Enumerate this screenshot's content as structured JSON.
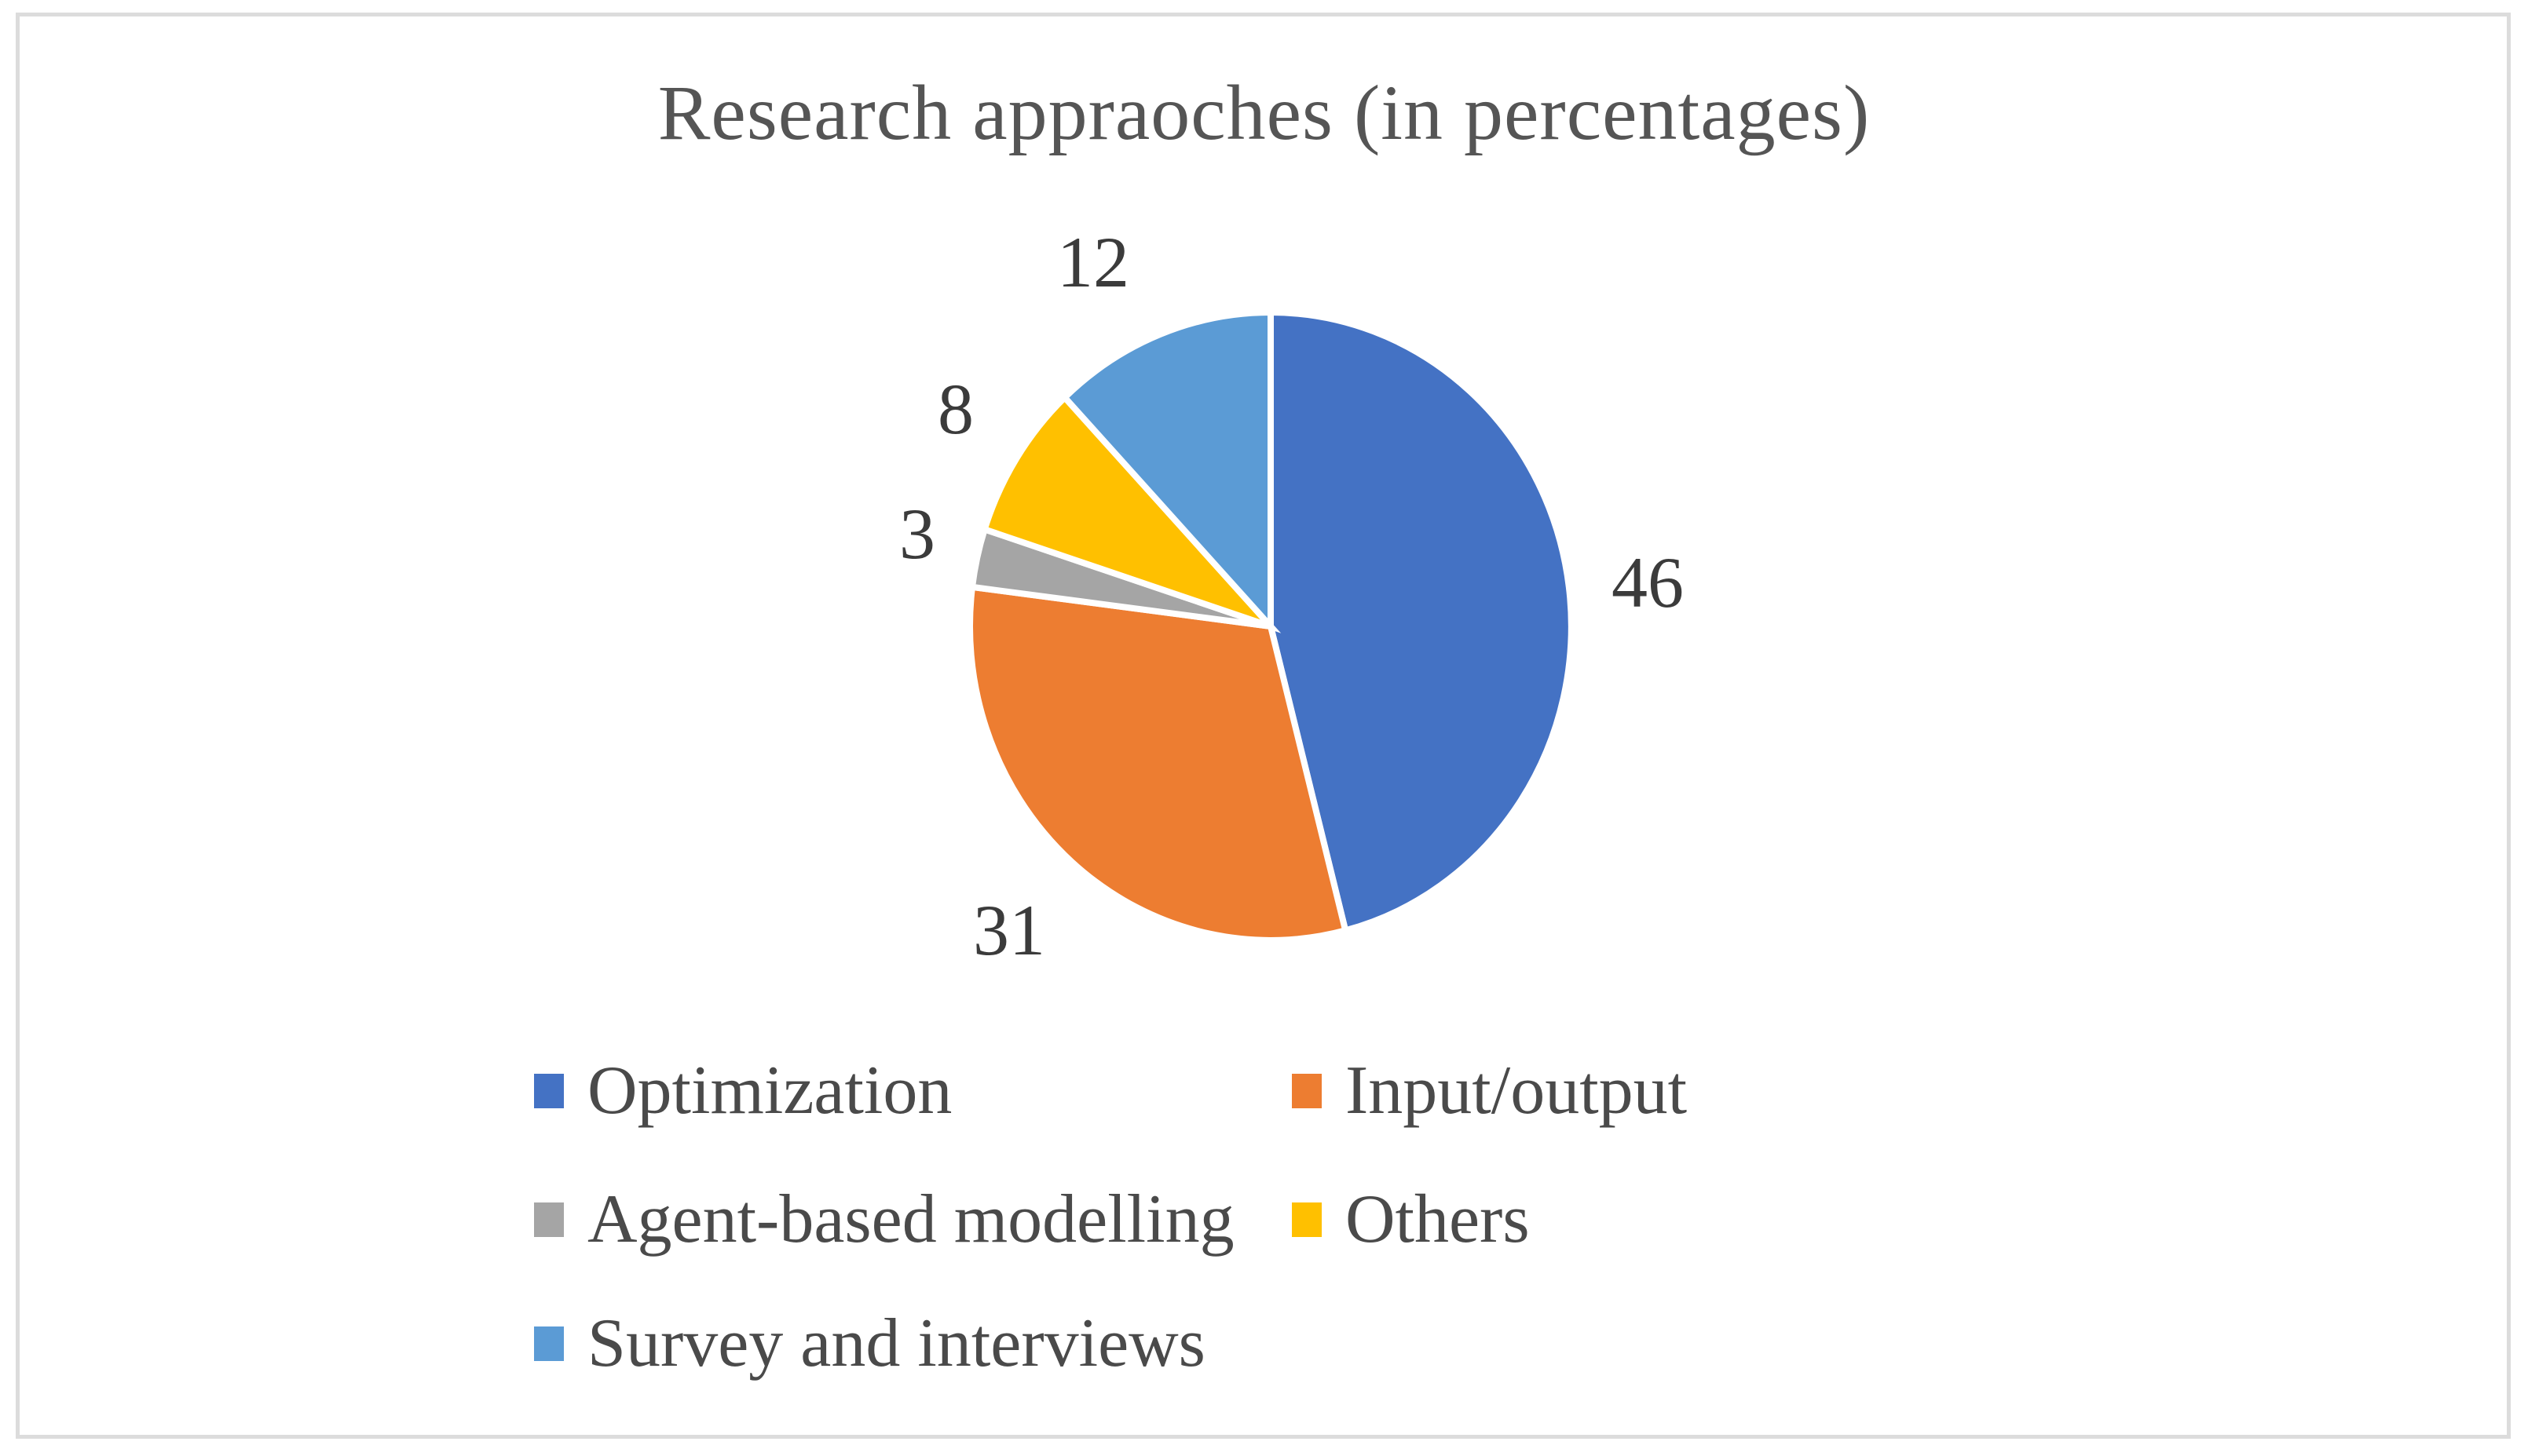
{
  "title": {
    "text": "Research appraoches (in percentages)",
    "color": "#555555"
  },
  "frame": {
    "border_color": "#dcdcdc",
    "background": "#ffffff"
  },
  "chart_data": {
    "type": "pie",
    "title": "Research appraoches (in percentages)",
    "unit": "percent",
    "total": 100,
    "start_angle_deg": 0,
    "direction": "clockwise",
    "data_labels": "outside",
    "legend_position": "bottom",
    "label_color": "#3b3b3b",
    "separator_color": "#ffffff",
    "slices": [
      {
        "label": "Optimization",
        "value": 46,
        "color": "#4472C4"
      },
      {
        "label": "Input/output",
        "value": 31,
        "color": "#ED7D31"
      },
      {
        "label": "Agent-based modelling",
        "value": 3,
        "color": "#A5A5A5"
      },
      {
        "label": "Others",
        "value": 8,
        "color": "#FFC000"
      },
      {
        "label": "Survey and interviews",
        "value": 12,
        "color": "#5B9BD5"
      }
    ]
  }
}
